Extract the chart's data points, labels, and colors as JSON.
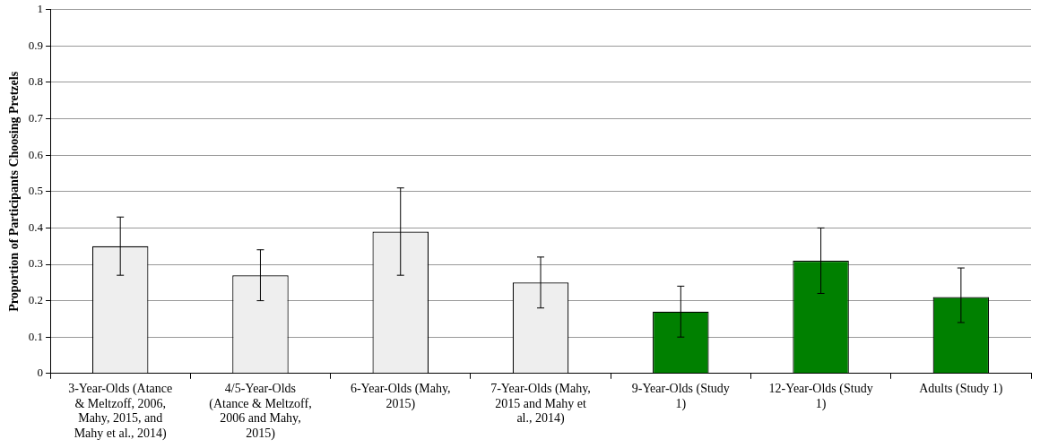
{
  "chart_data": {
    "type": "bar",
    "ylabel": "Proportion of Participants Choosing Pretzels",
    "categories": [
      "3-Year-Olds (Atance & Meltzoff, 2006, Mahy, 2015, and Mahy et al., 2014)",
      "4/5-Year-Olds (Atance & Meltzoff, 2006 and Mahy, 2015)",
      "6-Year-Olds (Mahy, 2015)",
      "7-Year-Olds (Mahy, 2015 and Mahy et al., 2014)",
      "9-Year-Olds (Study 1)",
      "12-Year-Olds (Study 1)",
      "Adults (Study 1)"
    ],
    "values": [
      0.35,
      0.27,
      0.39,
      0.25,
      0.17,
      0.31,
      0.21
    ],
    "colors": [
      "#eeeeee",
      "#eeeeee",
      "#eeeeee",
      "#eeeeee",
      "#008000",
      "#008000",
      "#008000"
    ],
    "errors": [
      [
        0.27,
        0.43
      ],
      [
        0.2,
        0.34
      ],
      [
        0.27,
        0.51
      ],
      [
        0.18,
        0.32
      ],
      [
        0.1,
        0.24
      ],
      [
        0.22,
        0.4
      ],
      [
        0.14,
        0.29
      ]
    ],
    "ylim": [
      0,
      1
    ],
    "yticks": [
      0,
      0.1,
      0.2,
      0.3,
      0.4,
      0.5,
      0.6,
      0.7,
      0.8,
      0.9,
      1
    ],
    "grid": "y",
    "legend": false
  }
}
